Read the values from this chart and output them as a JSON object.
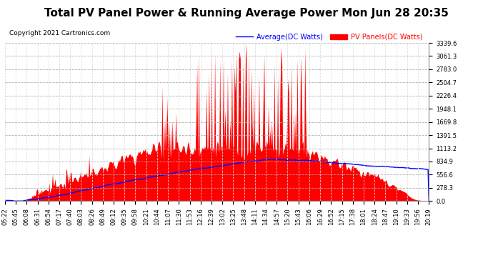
{
  "title": "Total PV Panel Power & Running Average Power Mon Jun 28 20:35",
  "copyright": "Copyright 2021 Cartronics.com",
  "legend_avg": "Average(DC Watts)",
  "legend_pv": "PV Panels(DC Watts)",
  "avg_color": "#0000ff",
  "pv_color": "#ff0000",
  "background_color": "#ffffff",
  "grid_color_h": "#aaaaaa",
  "grid_color_v": "#ffffff",
  "ylim": [
    0,
    3339.6
  ],
  "yticks": [
    0.0,
    278.3,
    556.6,
    834.9,
    1113.2,
    1391.5,
    1669.8,
    1948.1,
    2226.4,
    2504.7,
    2783.0,
    3061.3,
    3339.6
  ],
  "x_labels": [
    "05:22",
    "05:45",
    "06:08",
    "06:31",
    "06:54",
    "07:17",
    "07:40",
    "08:03",
    "08:26",
    "08:49",
    "09:12",
    "09:35",
    "09:58",
    "10:21",
    "10:44",
    "11:07",
    "11:30",
    "11:53",
    "12:16",
    "12:39",
    "13:02",
    "13:25",
    "13:48",
    "14:11",
    "14:34",
    "14:57",
    "15:20",
    "15:43",
    "16:06",
    "16:29",
    "16:52",
    "17:15",
    "17:38",
    "18:01",
    "18:24",
    "18:47",
    "19:10",
    "19:33",
    "19:56",
    "20:19"
  ],
  "n_points": 500,
  "title_fontsize": 11,
  "tick_fontsize": 6,
  "copyright_fontsize": 6.5,
  "legend_fontsize": 7
}
